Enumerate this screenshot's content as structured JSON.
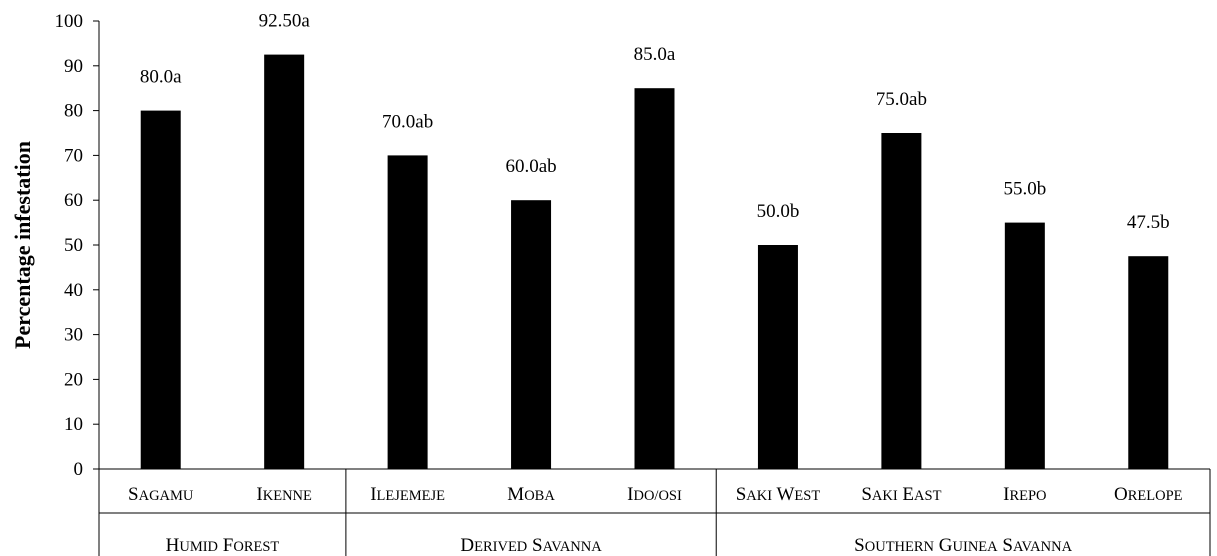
{
  "chart_data": {
    "type": "bar",
    "ylabel": "Percentage infestation",
    "xlabel": "",
    "ylim": [
      0,
      100
    ],
    "yticks": [
      0,
      10,
      20,
      30,
      40,
      50,
      60,
      70,
      80,
      90,
      100
    ],
    "grid": false,
    "bar_color": "#000000",
    "categories": [
      "Sagamu",
      "Ikenne",
      "Ilejemeje",
      "Moba",
      "Ido/Osi",
      "Saki West",
      "Saki East",
      "Irepo",
      "Orelope"
    ],
    "values": [
      80.0,
      92.5,
      70.0,
      60.0,
      85.0,
      50.0,
      75.0,
      55.0,
      47.5
    ],
    "data_labels": [
      "80.0a",
      "92.50a",
      "70.0ab",
      "60.0ab",
      "85.0a",
      "50.0b",
      "75.0ab",
      "55.0b",
      "47.5b"
    ],
    "groups": [
      {
        "name": "Humid forest",
        "count": 2
      },
      {
        "name": "Derived Savanna",
        "count": 3
      },
      {
        "name": "Southern Guinea Savanna",
        "count": 4
      }
    ]
  }
}
